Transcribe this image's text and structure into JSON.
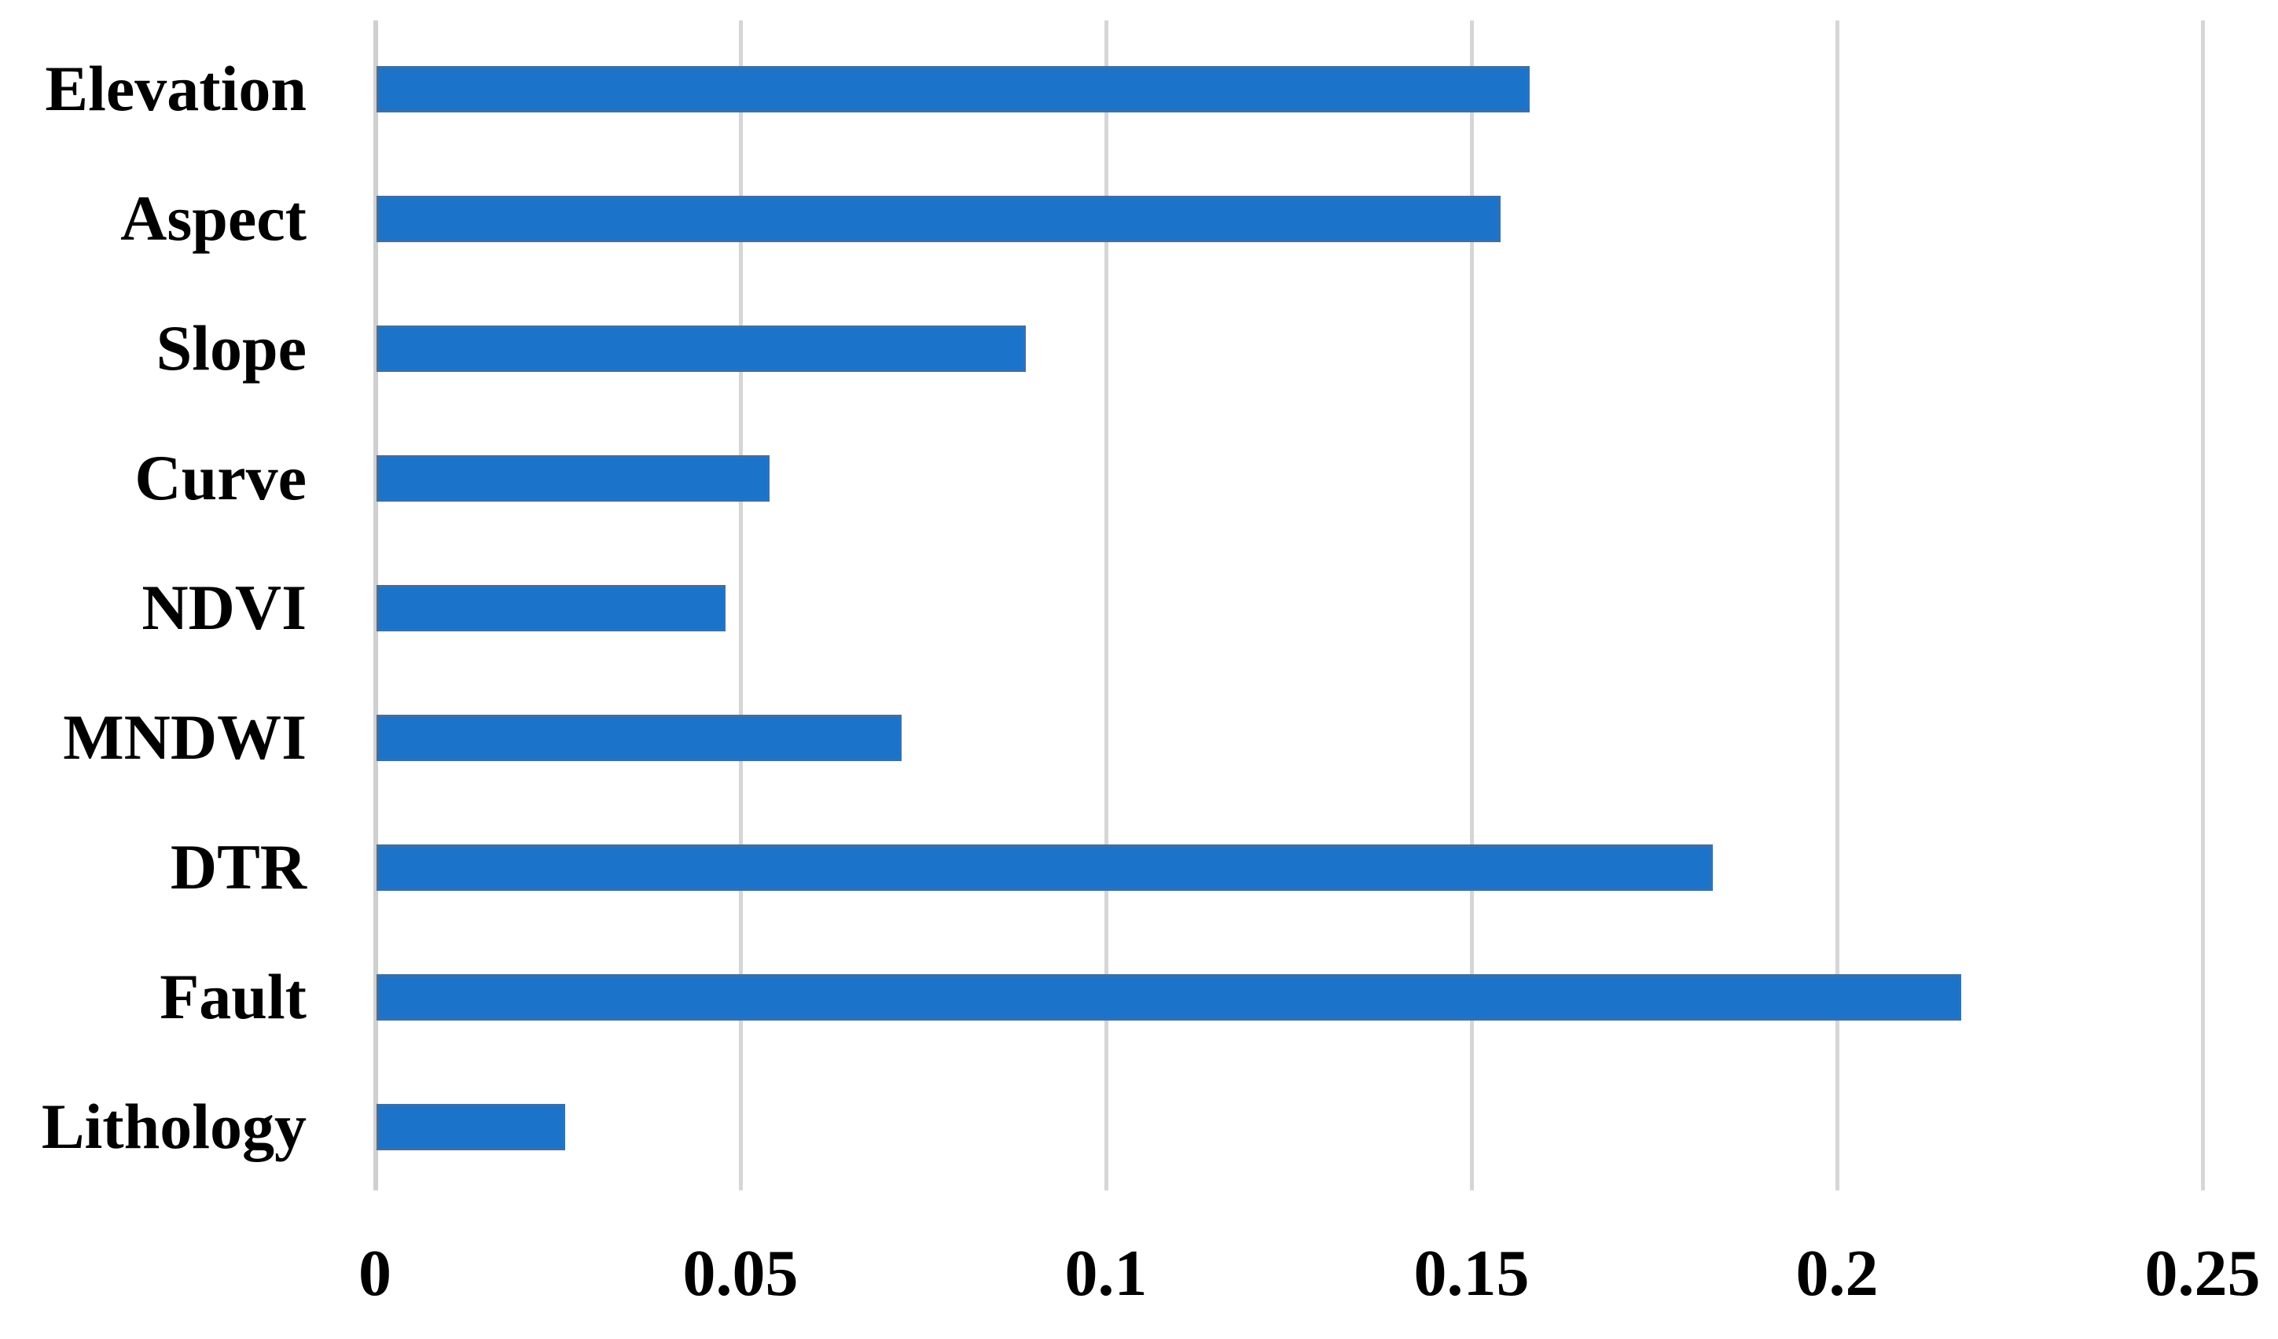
{
  "chart_data": {
    "type": "bar",
    "orientation": "horizontal",
    "title": "",
    "categories": [
      "Elevation",
      "Aspect",
      "Slope",
      "Curve",
      "NDVI",
      "MNDWI",
      "DTR",
      "Fault",
      "Lithology"
    ],
    "values": [
      0.158,
      0.154,
      0.089,
      0.054,
      0.048,
      0.072,
      0.183,
      0.217,
      0.026
    ],
    "xlabel": "",
    "ylabel": "",
    "xlim": [
      0,
      0.25
    ],
    "x_ticks": [
      0,
      0.05,
      0.1,
      0.15,
      0.2,
      0.25
    ],
    "x_tick_labels": [
      "0",
      "0.05",
      "0.1",
      "0.15",
      "0.2",
      "0.25"
    ],
    "grid": "vertical-gridlines-on",
    "legend": "none",
    "bar_color": "#1B74C9",
    "bar_border_color": "#3C6FA8",
    "gridline_color": "#D6D6D6",
    "axis_line_color": "#CFCFCF",
    "text_color": "#000000",
    "background_color": "#FFFFFF"
  }
}
